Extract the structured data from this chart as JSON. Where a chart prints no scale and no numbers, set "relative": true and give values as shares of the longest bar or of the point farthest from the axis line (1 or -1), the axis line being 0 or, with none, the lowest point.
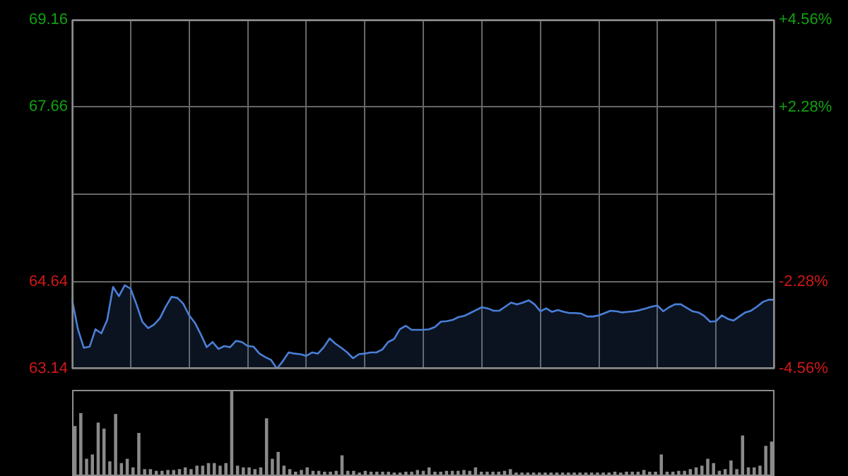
{
  "chart_data": [
    {
      "type": "area",
      "color": "#4a7fd6",
      "marker": "none",
      "grid": true,
      "tick_labels": "y",
      "categories": [
        null,
        null,
        null,
        null,
        null,
        null,
        null,
        null,
        null,
        null,
        null,
        null,
        null,
        null,
        null,
        null,
        null,
        null,
        null,
        null,
        null,
        null,
        null,
        null,
        null,
        null,
        null,
        null,
        null,
        null,
        null,
        null,
        null,
        null,
        null,
        null,
        null,
        null,
        null,
        null,
        null,
        null,
        null,
        null,
        null,
        null,
        null,
        null,
        null,
        null,
        null,
        null,
        null,
        null,
        null,
        null,
        null,
        null,
        null,
        null,
        null,
        null,
        null,
        null,
        null,
        null,
        null,
        null,
        null,
        null,
        null,
        null,
        null,
        null,
        null,
        null,
        null,
        null,
        null,
        null,
        null,
        null,
        null,
        null,
        null,
        null,
        null,
        null,
        null,
        null,
        null,
        null,
        null,
        null,
        null,
        null,
        null,
        null,
        null,
        null,
        null,
        null,
        null,
        null,
        null,
        null,
        null,
        null,
        null,
        null,
        null,
        null,
        null,
        null,
        null,
        null,
        null,
        null,
        null,
        null,
        null
      ],
      "values": [
        64.33,
        63.82,
        63.5,
        63.52,
        63.82,
        63.75,
        63.98,
        64.55,
        64.39,
        64.58,
        64.52,
        64.25,
        63.95,
        63.84,
        63.9,
        64.01,
        64.21,
        64.38,
        64.36,
        64.26,
        64.06,
        63.93,
        63.73,
        63.51,
        63.6,
        63.48,
        63.53,
        63.51,
        63.62,
        63.6,
        63.53,
        63.52,
        63.4,
        63.34,
        63.29,
        63.14,
        63.27,
        63.42,
        63.4,
        63.39,
        63.36,
        63.42,
        63.4,
        63.51,
        63.66,
        63.57,
        63.5,
        63.42,
        63.32,
        63.39,
        63.4,
        63.42,
        63.42,
        63.47,
        63.6,
        63.65,
        63.82,
        63.88,
        63.81,
        63.81,
        63.81,
        63.82,
        63.86,
        63.95,
        63.96,
        63.98,
        64.03,
        64.05,
        64.1,
        64.15,
        64.2,
        64.18,
        64.14,
        64.14,
        64.21,
        64.28,
        64.25,
        64.28,
        64.32,
        64.25,
        64.13,
        64.18,
        64.12,
        64.15,
        64.12,
        64.1,
        64.1,
        64.09,
        64.04,
        64.04,
        64.06,
        64.1,
        64.14,
        64.13,
        64.11,
        64.12,
        64.13,
        64.15,
        64.18,
        64.21,
        64.23,
        64.13,
        64.2,
        64.25,
        64.25,
        64.19,
        64.13,
        64.11,
        64.05,
        63.95,
        63.96,
        64.06,
        64.0,
        63.97,
        64.04,
        64.11,
        64.14,
        64.21,
        64.29,
        64.33,
        64.33
      ],
      "ylim": [
        63.14,
        69.16
      ],
      "yticks": [
        63.14,
        64.64,
        {
          "value": 66.15,
          "label": null
        },
        67.66,
        69.16
      ],
      "y2lim": [
        -4.56,
        4.56
      ],
      "y2ticks": [
        {
          "value": -4.56,
          "label": "-4.56%"
        },
        {
          "value": -2.28,
          "label": "-2.28%"
        },
        {
          "value": 0,
          "label": null
        },
        {
          "value": 2.28,
          "label": "+2.28%"
        },
        {
          "value": 4.56,
          "label": "+4.56%"
        }
      ]
    },
    {
      "type": "bar",
      "relative": true,
      "color": "#8a8a8a",
      "tick_labels": false,
      "categories": [
        null,
        null,
        null,
        null,
        null,
        null,
        null,
        null,
        null,
        null,
        null,
        null,
        null,
        null,
        null,
        null,
        null,
        null,
        null,
        null,
        null,
        null,
        null,
        null,
        null,
        null,
        null,
        null,
        null,
        null,
        null,
        null,
        null,
        null,
        null,
        null,
        null,
        null,
        null,
        null,
        null,
        null,
        null,
        null,
        null,
        null,
        null,
        null,
        null,
        null,
        null,
        null,
        null,
        null,
        null,
        null,
        null,
        null,
        null,
        null,
        null,
        null,
        null,
        null,
        null,
        null,
        null,
        null,
        null,
        null,
        null,
        null,
        null,
        null,
        null,
        null,
        null,
        null,
        null,
        null,
        null,
        null,
        null,
        null,
        null,
        null,
        null,
        null,
        null,
        null,
        null,
        null,
        null,
        null,
        null,
        null,
        null,
        null,
        null,
        null,
        null,
        null,
        null,
        null,
        null,
        null,
        null,
        null,
        null,
        null,
        null,
        null,
        null,
        null,
        null,
        null,
        null,
        null,
        null,
        null,
        null
      ],
      "values": [
        0.58,
        0.73,
        0.2,
        0.25,
        0.62,
        0.55,
        0.17,
        0.72,
        0.15,
        0.2,
        0.1,
        0.5,
        0.08,
        0.08,
        0.06,
        0.06,
        0.07,
        0.07,
        0.08,
        0.1,
        0.08,
        0.12,
        0.12,
        0.15,
        0.15,
        0.12,
        0.15,
        1,
        0.12,
        0.1,
        0.1,
        0.08,
        0.1,
        0.67,
        0.2,
        0.28,
        0.12,
        0.08,
        0.05,
        0.07,
        0.1,
        0.06,
        0.06,
        0.05,
        0.05,
        0.06,
        0.24,
        0.06,
        0.06,
        0.04,
        0.06,
        0.05,
        0.05,
        0.05,
        0.05,
        0.04,
        0.04,
        0.05,
        0.05,
        0.07,
        0.06,
        0.1,
        0.05,
        0.05,
        0.06,
        0.06,
        0.06,
        0.07,
        0.06,
        0.1,
        0.05,
        0.05,
        0.05,
        0.05,
        0.06,
        0.08,
        0.04,
        0.04,
        0.04,
        0.04,
        0.04,
        0.04,
        0.04,
        0.04,
        0.04,
        0.04,
        0.04,
        0.04,
        0.04,
        0.04,
        0.04,
        0.04,
        0.04,
        0.05,
        0.04,
        0.05,
        0.05,
        0.05,
        0.07,
        0.05,
        0.05,
        0.25,
        0.05,
        0.05,
        0.06,
        0.06,
        0.08,
        0.1,
        0.12,
        0.2,
        0.15,
        0.06,
        0.08,
        0.18,
        0.08,
        0.47,
        0.1,
        0.1,
        0.12,
        0.35,
        0.4
      ]
    }
  ]
}
